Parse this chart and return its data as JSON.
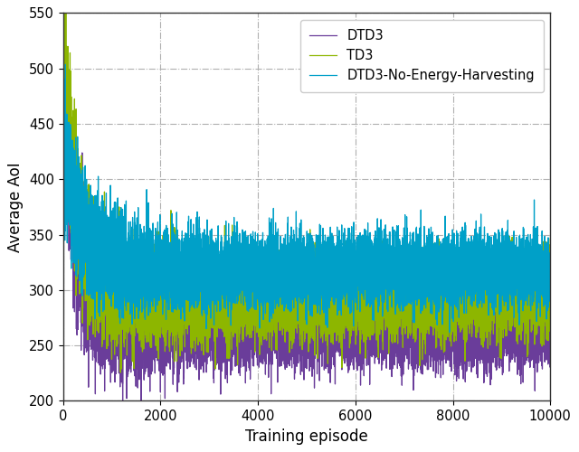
{
  "title": "",
  "xlabel": "Training episode",
  "ylabel": "Average AoI",
  "xlim": [
    0,
    10000
  ],
  "ylim": [
    200,
    550
  ],
  "yticks": [
    200,
    250,
    300,
    350,
    400,
    450,
    500,
    550
  ],
  "xticks": [
    0,
    2000,
    4000,
    6000,
    8000,
    10000
  ],
  "series": {
    "DTD3": {
      "color": "#6a3d9a",
      "start": 500,
      "end_mean": 262,
      "noise_early": 35,
      "noise_late": 15,
      "fast_decay": 0.004,
      "slow_decay": 0.00012
    },
    "TD3": {
      "color": "#8db600",
      "start": 510,
      "end_mean": 293,
      "noise_early": 38,
      "noise_late": 18,
      "fast_decay": 0.0032,
      "slow_decay": 0.0001
    },
    "DTD3-No-Energy-Harvesting": {
      "color": "#00a0c8",
      "start": 425,
      "end_mean": 318,
      "noise_early": 30,
      "noise_late": 16,
      "fast_decay": 0.0025,
      "slow_decay": 8.5e-05
    }
  },
  "n_episodes": 10000,
  "legend_loc": "upper right",
  "grid_linestyle": "-.",
  "grid_color": "#b0b0b0",
  "grid_linewidth": 0.8,
  "linewidth": 0.9,
  "background_color": "#ffffff"
}
